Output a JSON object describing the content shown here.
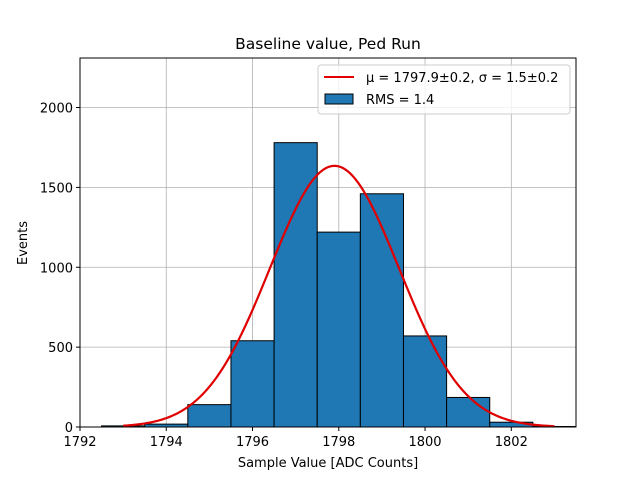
{
  "chart_data": {
    "type": "bar",
    "title": "Baseline value, Ped Run",
    "xlabel": "Sample Value [ADC Counts]",
    "ylabel": "Events",
    "xlim": [
      1792,
      1803.5
    ],
    "ylim": [
      0,
      2310
    ],
    "xticks": [
      1792,
      1794,
      1796,
      1798,
      1800,
      1802
    ],
    "yticks": [
      0,
      500,
      1000,
      1500,
      2000
    ],
    "grid": true,
    "legend_position": "top-right",
    "bins": [
      {
        "left": 1792.5,
        "right": 1793.5,
        "count": 7
      },
      {
        "left": 1793.5,
        "right": 1794.5,
        "count": 18
      },
      {
        "left": 1794.5,
        "right": 1795.5,
        "count": 140
      },
      {
        "left": 1795.5,
        "right": 1796.5,
        "count": 540
      },
      {
        "left": 1796.5,
        "right": 1797.5,
        "count": 1780
      },
      {
        "left": 1797.5,
        "right": 1798.5,
        "count": 1220
      },
      {
        "left": 1798.5,
        "right": 1799.5,
        "count": 1460
      },
      {
        "left": 1799.5,
        "right": 1800.5,
        "count": 570
      },
      {
        "left": 1800.5,
        "right": 1801.5,
        "count": 185
      },
      {
        "left": 1801.5,
        "right": 1802.5,
        "count": 30
      },
      {
        "left": 1802.5,
        "right": 1803.5,
        "count": 3
      }
    ],
    "fit": {
      "type": "gaussian",
      "mu": 1797.9,
      "sigma": 1.5,
      "amplitude": 1635,
      "x_range": [
        1793,
        1803
      ]
    },
    "legend": [
      {
        "text": "μ = 1797.9±0.2, σ = 1.5±0.2",
        "kind": "line"
      },
      {
        "text": "RMS = 1.4",
        "kind": "bar"
      }
    ],
    "colors": {
      "bar_fill": "#1f77b4",
      "bar_edge": "#000000",
      "fit_line": "#e00000",
      "grid": "#b0b0b0"
    }
  }
}
